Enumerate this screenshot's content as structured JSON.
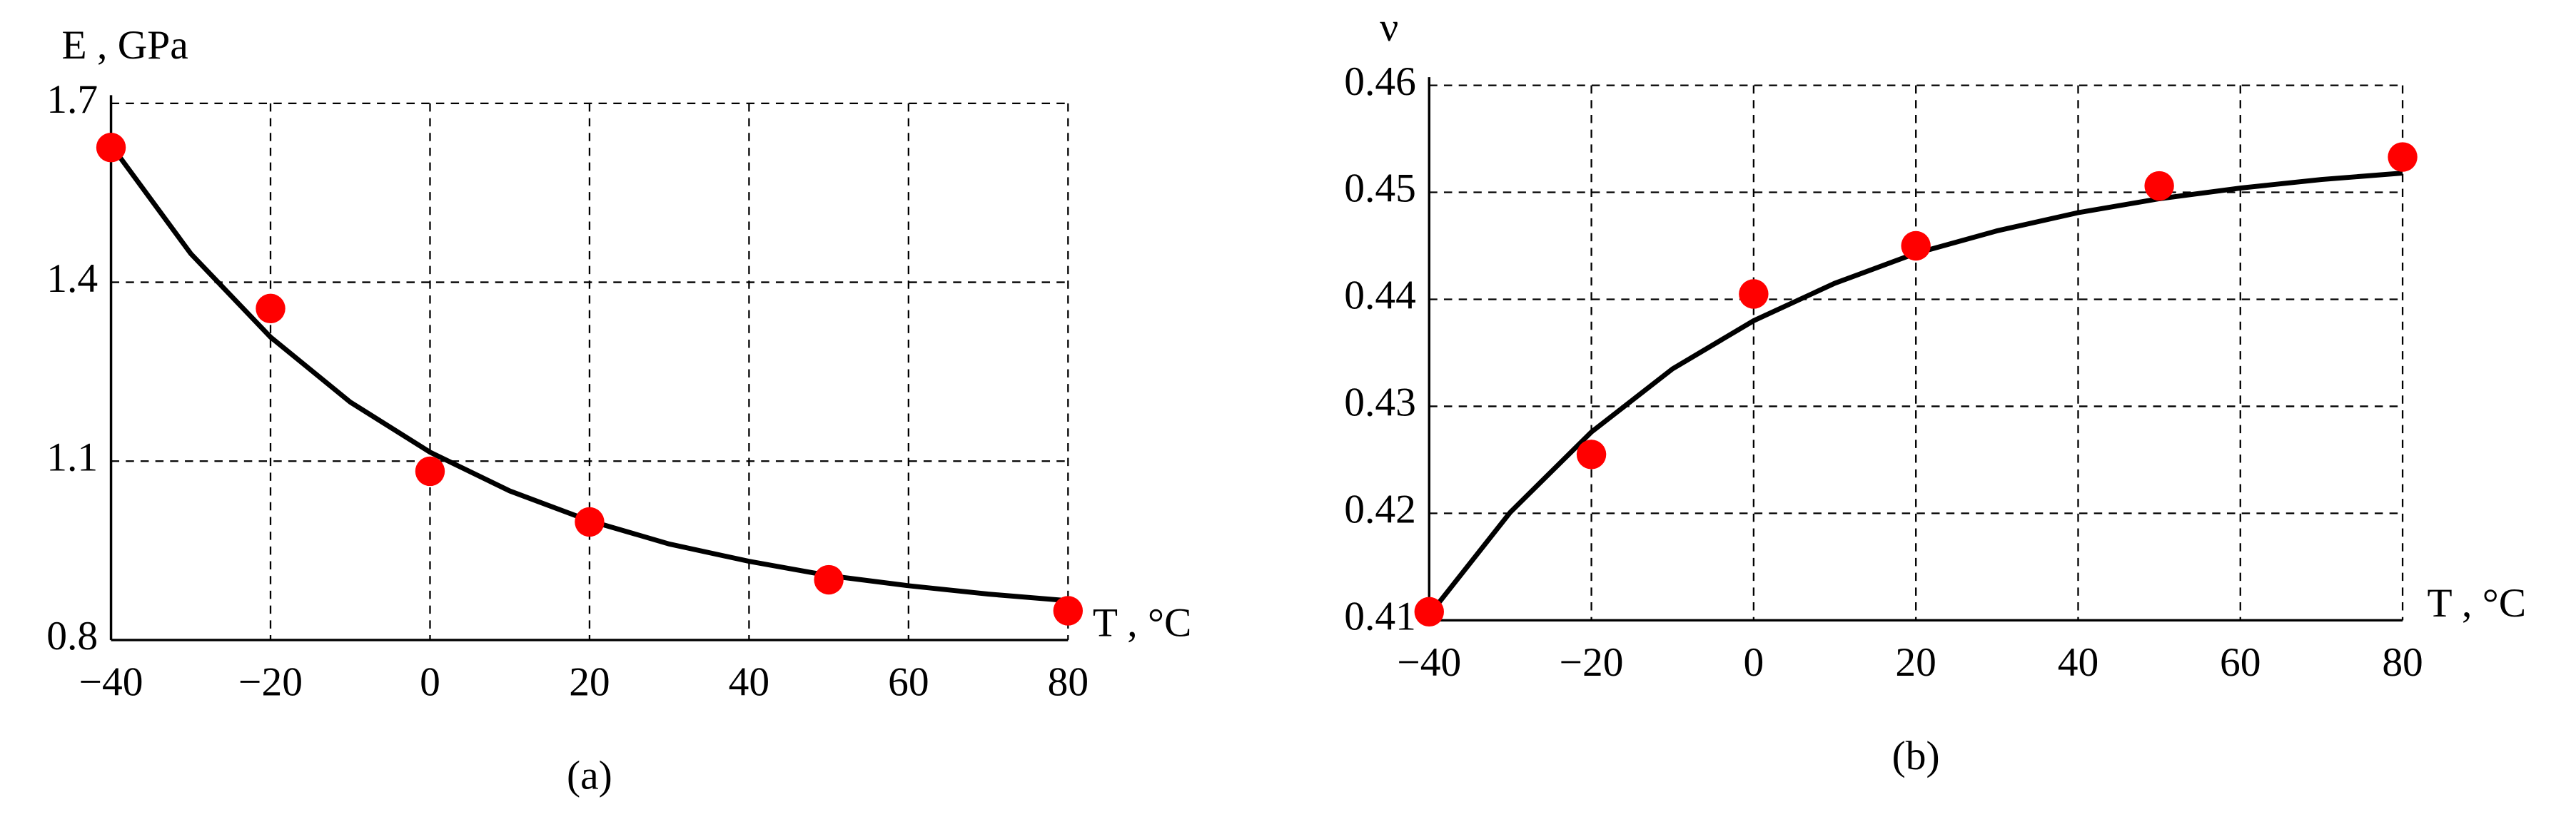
{
  "chart_data": [
    {
      "type": "scatter",
      "caption": "(a)",
      "ylabel": "E , GPa",
      "xlabel": "T , °C",
      "xlim": [
        -40,
        80
      ],
      "ylim": [
        0.8,
        1.7
      ],
      "xticks": [
        {
          "value": -40,
          "label": "−40"
        },
        {
          "value": -20,
          "label": "−20"
        },
        0,
        20,
        40,
        60,
        80
      ],
      "yticks": [
        0.8,
        1.1,
        1.4,
        1.7
      ],
      "grid": true,
      "series": [
        {
          "type": "line",
          "color": "#000000",
          "x": [
            -40,
            -30,
            -20,
            -10,
            0,
            10,
            20,
            30,
            40,
            50,
            60,
            70,
            80
          ],
          "values": [
            1.63,
            1.448,
            1.308,
            1.199,
            1.115,
            1.05,
            1.0,
            0.961,
            0.932,
            0.908,
            0.891,
            0.877,
            0.866
          ]
        },
        {
          "type": "scatter",
          "color": "#ff0000",
          "x": [
            -40,
            -20,
            0,
            20,
            50,
            80
          ],
          "values": [
            1.626,
            1.356,
            1.083,
            0.998,
            0.901,
            0.849
          ]
        }
      ]
    },
    {
      "type": "scatter",
      "caption": "(b)",
      "ylabel": "ν",
      "xlabel": "T , °C",
      "xlim": [
        -40,
        80
      ],
      "ylim": [
        0.41,
        0.46
      ],
      "xticks": [
        {
          "value": -40,
          "label": "−40"
        },
        {
          "value": -20,
          "label": "−20"
        },
        0,
        20,
        40,
        60,
        80
      ],
      "yticks": [
        0.41,
        0.42,
        0.43,
        0.44,
        0.45,
        0.46
      ],
      "grid": true,
      "series": [
        {
          "type": "line",
          "color": "#000000",
          "x": [
            -40,
            -30,
            -20,
            -10,
            0,
            10,
            20,
            30,
            40,
            50,
            60,
            70,
            80
          ],
          "values": [
            0.4105,
            0.4201,
            0.4276,
            0.4335,
            0.438,
            0.4415,
            0.4443,
            0.4464,
            0.4481,
            0.4494,
            0.4504,
            0.4512,
            0.4518
          ]
        },
        {
          "type": "scatter",
          "color": "#ff0000",
          "x": [
            -40,
            -20,
            0,
            20,
            50,
            80
          ],
          "values": [
            0.4108,
            0.4255,
            0.4405,
            0.445,
            0.4506,
            0.4533
          ]
        }
      ]
    }
  ]
}
